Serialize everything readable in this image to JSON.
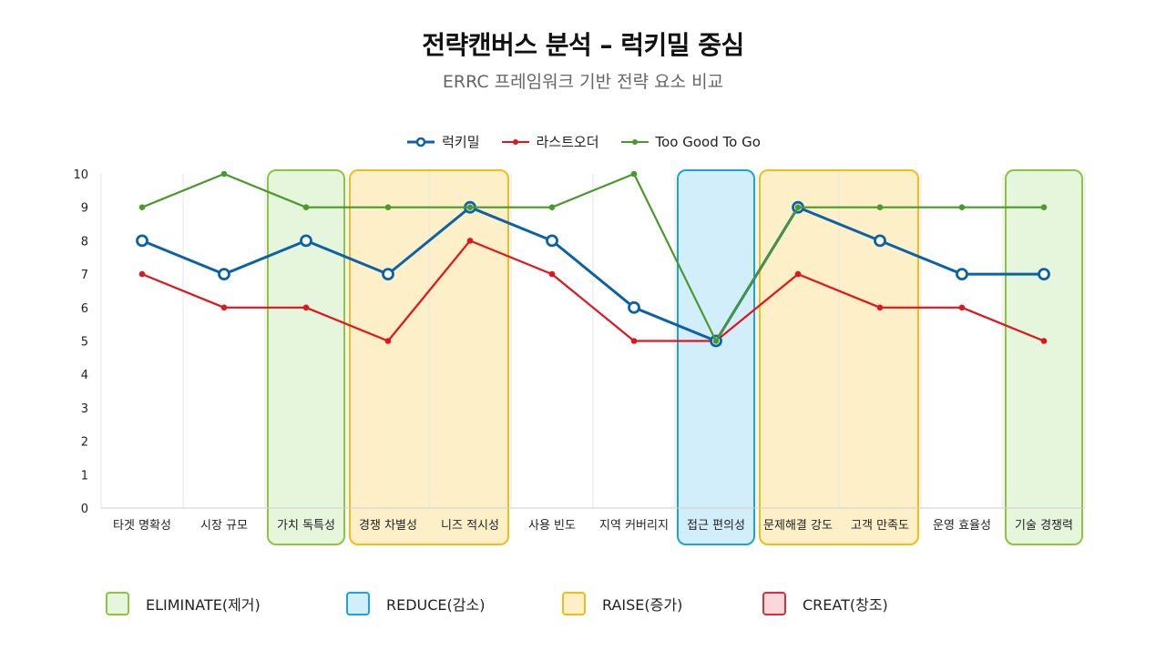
{
  "title": "전략캔버스 분석 – 럭키밀 중심",
  "subtitle": "ERRC 프레임워크 기반 전략 요소 비교",
  "chart_data": {
    "type": "line",
    "categories": [
      "타겟 명확성",
      "시장 규모",
      "가치 독특성",
      "경쟁 차별성",
      "니즈 적시성",
      "사용 빈도",
      "지역 커버리지",
      "접근 편의성",
      "문제해결 강도",
      "고객 만족도",
      "운영 효율성",
      "기술 경쟁력"
    ],
    "ylim": [
      0,
      10
    ],
    "yticks": [
      "0",
      "1",
      "2",
      "3",
      "4",
      "5",
      "6",
      "7",
      "8",
      "9",
      "10"
    ],
    "series": [
      {
        "name": "럭키밀",
        "color": "#0b62a8",
        "marker": "hollow",
        "values": [
          8,
          7,
          8,
          7,
          9,
          8,
          6,
          5,
          9,
          8,
          7,
          7
        ]
      },
      {
        "name": "라스트오더",
        "color": "#e3141b",
        "marker": "dot",
        "values": [
          7,
          6,
          6,
          5,
          8,
          7,
          5,
          5,
          7,
          6,
          6,
          5
        ]
      },
      {
        "name": "Too Good To Go",
        "color": "#4a9a2a",
        "marker": "dot",
        "values": [
          9,
          10,
          9,
          9,
          9,
          9,
          10,
          5,
          9,
          9,
          9,
          9
        ]
      }
    ],
    "highlights": [
      {
        "type": "ELIMINATE",
        "start": 2,
        "end": 2
      },
      {
        "type": "RAISE",
        "start": 3,
        "end": 4
      },
      {
        "type": "REDUCE",
        "start": 7,
        "end": 7
      },
      {
        "type": "RAISE",
        "start": 8,
        "end": 9
      },
      {
        "type": "ELIMINATE",
        "start": 11,
        "end": 11
      }
    ]
  },
  "errc_legend": [
    {
      "type": "ELIMINATE",
      "label": "ELIMINATE(제거)",
      "fill": "#e6f6dc",
      "stroke": "#8cc63f"
    },
    {
      "type": "REDUCE",
      "label": "REDUCE(감소)",
      "fill": "#d3eefb",
      "stroke": "#1aa3dc"
    },
    {
      "type": "RAISE",
      "label": "RAISE(증가)",
      "fill": "#fdf0c8",
      "stroke": "#f2bd17"
    },
    {
      "type": "CREAT",
      "label": "CREAT(창조)",
      "fill": "#fbd7da",
      "stroke": "#d6303f"
    }
  ]
}
